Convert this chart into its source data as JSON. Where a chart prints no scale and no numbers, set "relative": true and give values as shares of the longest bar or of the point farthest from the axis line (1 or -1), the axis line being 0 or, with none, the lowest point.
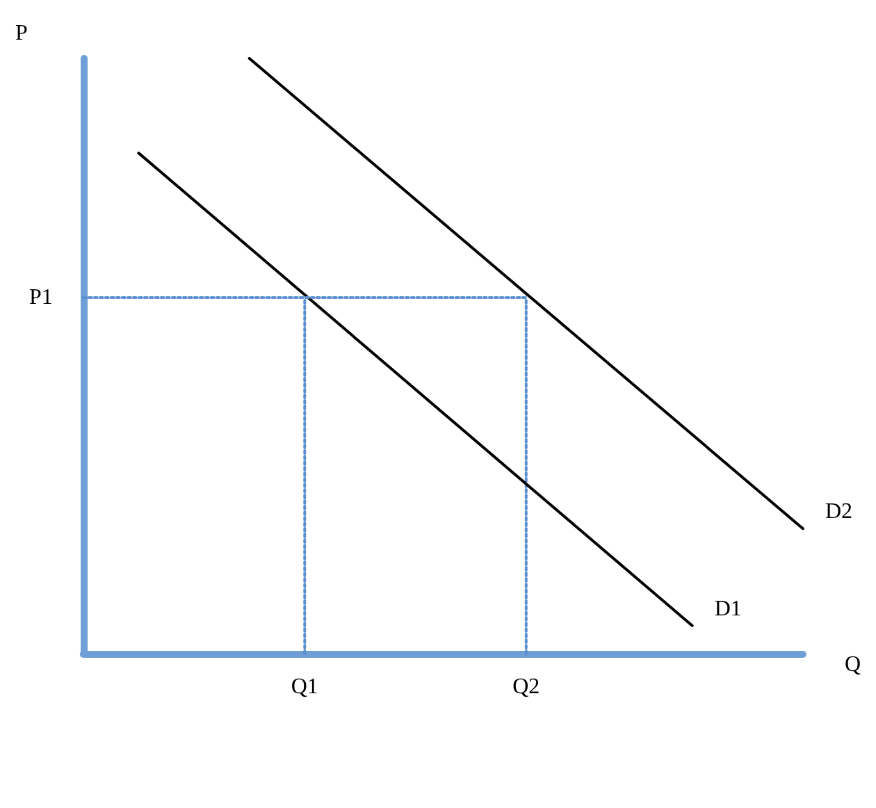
{
  "chart_data": {
    "type": "line",
    "relative": true,
    "xlabel": "Q",
    "ylabel": "P",
    "grid": false,
    "legend": false,
    "marker": "none",
    "line_style": "solid",
    "categories": [
      null,
      null,
      null,
      null,
      "Q1",
      null,
      null,
      null,
      "Q2",
      null,
      null,
      null,
      null,
      null
    ],
    "series": [
      {
        "name": "D1",
        "color": "#000000",
        "values": [
          null,
          0.841,
          null,
          null,
          null,
          null,
          null,
          null,
          null,
          null,
          null,
          0.047,
          null,
          null
        ]
      },
      {
        "name": "D2",
        "color": "#000000",
        "values": [
          null,
          null,
          null,
          1,
          null,
          null,
          null,
          null,
          null,
          null,
          null,
          null,
          null,
          0.21
        ]
      },
      {
        "name": "P1",
        "color": "#5b8fd0",
        "line_style": "dotted",
        "values": [
          0.598,
          0.598,
          0.598,
          0.598,
          0.598,
          0.598,
          0.598,
          0.598,
          0.598,
          null,
          null,
          null,
          null,
          null
        ]
      },
      {
        "color": "#5b8fd0",
        "line_style": "dotted",
        "x": [
          "Q1",
          "Q1"
        ],
        "values": [
          0,
          0.598
        ]
      },
      {
        "color": "#5b8fd0",
        "line_style": "dotted",
        "x": [
          "Q2",
          "Q2"
        ],
        "values": [
          0,
          0.598
        ]
      }
    ]
  }
}
